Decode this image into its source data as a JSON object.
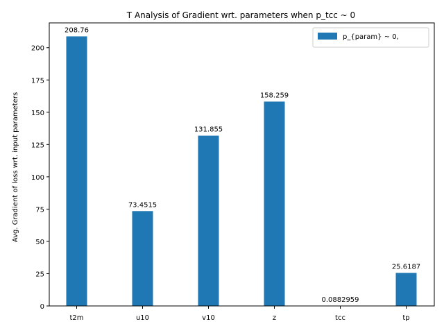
{
  "chart_data": {
    "type": "bar",
    "title": "T Analysis of Gradient wrt. parameters when p_tcc ~ 0",
    "xlabel": "",
    "ylabel": "Avg. Gradient of loss wrt. input parameters",
    "categories": [
      "t2m",
      "u10",
      "v10",
      "z",
      "tcc",
      "tp"
    ],
    "series": [
      {
        "name": "p_{param} ~ 0,",
        "values": [
          208.76,
          73.4515,
          131.855,
          158.259,
          0.0882959,
          25.6187
        ],
        "labels": [
          "208.76",
          "73.4515",
          "131.855",
          "158.259",
          "0.0882959",
          "25.6187"
        ],
        "color": "#1f77b4"
      }
    ],
    "ylim": [
      0,
      219.2
    ],
    "yticks": [
      0,
      25,
      50,
      75,
      100,
      125,
      150,
      175,
      200
    ],
    "grid": false,
    "legend_position": "top-right"
  }
}
